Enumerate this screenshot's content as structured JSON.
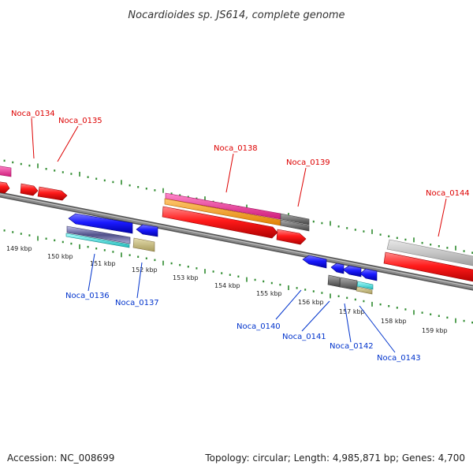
{
  "title": "Nocardioides sp. JS614, complete genome",
  "footer": {
    "accession": "Accession: NC_008699",
    "summary": "Topology: circular; Length: 4,985,871 bp; Genes: 4,700"
  },
  "ticks": [
    "149 kbp",
    "150 kbp",
    "151 kbp",
    "152 kbp",
    "153 kbp",
    "154 kbp",
    "155 kbp",
    "156 kbp",
    "157 kbp",
    "158 kbp",
    "159 kbp"
  ],
  "genes_top": [
    "Noca_0134",
    "Noca_0135",
    "Noca_0138",
    "Noca_0139",
    "Noca_0144"
  ],
  "genes_bottom": [
    "Noca_0136",
    "Noca_0137",
    "Noca_0140",
    "Noca_0141",
    "Noca_0142",
    "Noca_0143"
  ],
  "colors": {
    "top_label": "#dd0000",
    "bottom_label": "#0033cc",
    "backbone": "#808080",
    "tick": "#2e8b2e",
    "forward_gene": "#ff1a1a",
    "reverse_gene": "#1a1aff",
    "magenta_track": "#ee2a9a",
    "orange_track": "#ff9900",
    "grey_track": "#777777",
    "tan_track": "#c8bc80",
    "cyan_track": "#33dddd"
  }
}
